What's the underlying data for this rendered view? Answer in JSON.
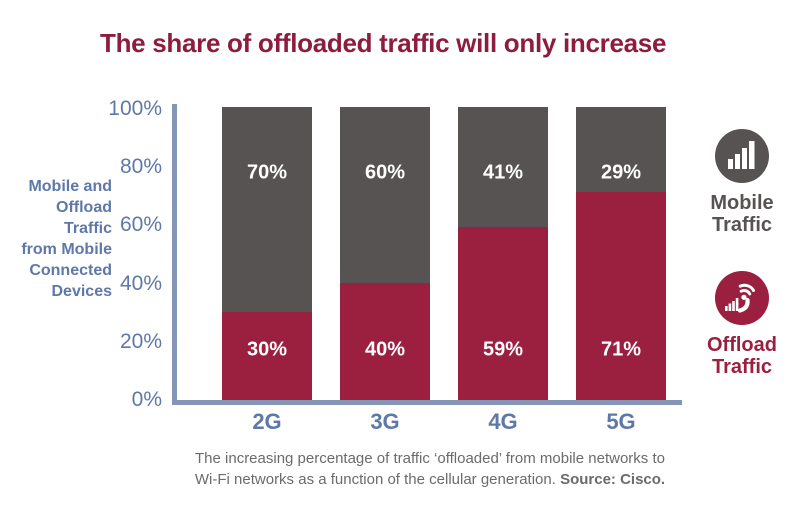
{
  "title": "The share of offloaded traffic will only increase",
  "colors": {
    "title": "#8E1C3C",
    "mobile": "#575352",
    "offload": "#9B2040",
    "axis_line": "#8495B7",
    "blue_text": "#5E78A8",
    "caption_text": "#6A6B6D",
    "bar_label": "#FFFFFF"
  },
  "y_axis": {
    "title_lines": [
      "Mobile and",
      "Offload",
      "Traffic",
      "from Mobile",
      "Connected",
      "Devices"
    ],
    "ticks": [
      "100%",
      "80%",
      "60%",
      "40%",
      "20%",
      "0%"
    ]
  },
  "legend": {
    "mobile": {
      "icon": "cell-signal-bars-icon",
      "line1": "Mobile",
      "line2": "Traffic"
    },
    "offload": {
      "icon": "wifi-antenna-icon",
      "line1": "Offload",
      "line2": "Traffic"
    }
  },
  "caption": {
    "line1": "The increasing percentage of traffic ‘offloaded’ from mobile networks to",
    "line2": "Wi-Fi networks as a function of the cellular generation. ",
    "source": "Source: Cisco."
  },
  "chart_data": {
    "type": "bar",
    "stacked": true,
    "categories": [
      "2G",
      "3G",
      "4G",
      "5G"
    ],
    "series": [
      {
        "name": "Offload Traffic",
        "color": "#9B2040",
        "values": [
          30,
          40,
          59,
          71
        ]
      },
      {
        "name": "Mobile Traffic",
        "color": "#575352",
        "values": [
          70,
          60,
          41,
          29
        ]
      }
    ],
    "value_labels": true,
    "title": "The share of offloaded traffic will only increase",
    "xlabel": "",
    "ylabel": "Mobile and Offload Traffic from Mobile Connected Devices",
    "ylim": [
      0,
      100
    ],
    "yticks": [
      0,
      20,
      40,
      60,
      80,
      100
    ],
    "grid": false,
    "legend_position": "right"
  }
}
